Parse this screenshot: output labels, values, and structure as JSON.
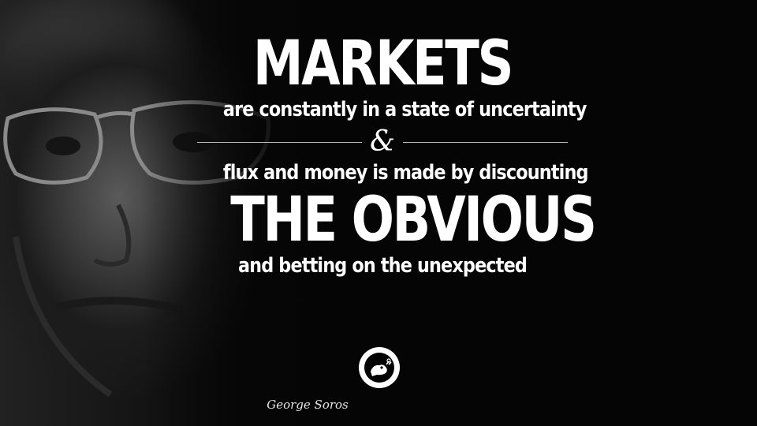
{
  "quote": {
    "line1": "MARKETS",
    "line2": "are constantly in a state of uncertainty",
    "ampersand": "&",
    "line3": "flux and money is made by discounting",
    "line4": "THE OBVIOUS",
    "line5": "and betting on the unexpected"
  },
  "author": "George Soros",
  "logo_icon": "bird-in-circle-icon",
  "colors": {
    "background": "#050505",
    "text": "#ffffff",
    "rule": "#bdbdbd"
  }
}
